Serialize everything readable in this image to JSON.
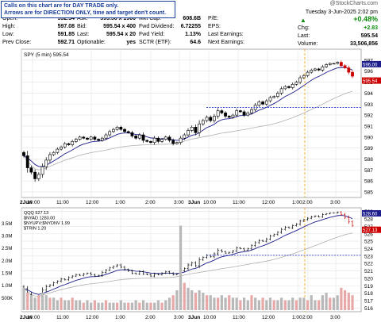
{
  "notice": {
    "line1": "Calls on this chart are for DAY TRADE only.",
    "line2": "Arrows are for DIRECTION ONLY, time and target don't count."
  },
  "brand": "@StockCharts.com",
  "header": {
    "date": "Tuesday  3-Jun-2025  2:02 pm",
    "change_pct": "+0.48%",
    "chg": "+2.83",
    "last": "595.54",
    "volume": "33,506,856"
  },
  "quote": {
    "rows": [
      [
        [
          "Open:",
          "592.34"
        ],
        [
          "Ask:",
          "595.56 x 1900"
        ],
        [
          "Mkt Cap:",
          "608.6B"
        ],
        [
          "P/E:",
          ""
        ]
      ],
      [
        [
          "High:",
          "597.08"
        ],
        [
          "Bid:",
          "595.54 x 400"
        ],
        [
          "Fwd Dividend:",
          "6.72255"
        ],
        [
          "EPS:",
          ""
        ]
      ],
      [
        [
          "Low:",
          "591.85"
        ],
        [
          "Last:",
          "595.54 x 20"
        ],
        [
          "Fwd Yield:",
          "1.13%"
        ],
        [
          "Last Earnings:",
          ""
        ]
      ],
      [
        [
          "Prev Close:",
          "592.71"
        ],
        [
          "Optionable:",
          "yes"
        ],
        [
          "SCTR (ETF):",
          "64.6"
        ],
        [
          "Next Earnings:",
          ""
        ]
      ]
    ],
    "right_labels": [
      "Chg:",
      "Last:",
      "Volume:"
    ]
  },
  "colors": {
    "up": "#000000",
    "down": "#cc0000",
    "ma_fast": "#1c1c8c",
    "ma_slow": "#b0b0b0",
    "level": "#2233cc",
    "now": "#f0a000",
    "grid": "#e4e4e4",
    "vol": "#b8b8b8"
  },
  "chart_data": [
    {
      "type": "candlestick",
      "title": "SPY (5 min) 595.54",
      "x_tick_labels": [
        "2Jun",
        "10:00",
        "11:00",
        "12:00",
        "1:00",
        "2:00",
        "3:00",
        "3Jun",
        "10:00",
        "11:00",
        "12:00",
        "1:00",
        "2:00",
        "3:00"
      ],
      "ylim": [
        584.5,
        598
      ],
      "y_ticks": [
        585,
        586,
        587,
        588,
        589,
        590,
        591,
        592,
        593,
        594,
        595,
        596,
        597
      ],
      "series": [
        {
          "type": "ohlc",
          "close": [
            588.3,
            587.2,
            586.8,
            586.2,
            586.6,
            587.3,
            587.9,
            588.4,
            588.6,
            588.9,
            589.1,
            589.4,
            589.3,
            589.6,
            589.8,
            590.0,
            589.9,
            589.8,
            590.0,
            589.8,
            589.7,
            589.9,
            590.2,
            590.5,
            590.7,
            590.9,
            590.7,
            590.5,
            590.4,
            590.1,
            589.9,
            590.2,
            589.7,
            589.6,
            589.5,
            589.9,
            589.6,
            589.8,
            590.0,
            589.7,
            589.4,
            589.5,
            589.9,
            590.2,
            590.6,
            590.9,
            590.4,
            591.2,
            591.5,
            591.8,
            591.5,
            591.9,
            592.4,
            592.2,
            591.9,
            591.8,
            592.0,
            592.4,
            592.3,
            592.0,
            592.2,
            592.5,
            592.9,
            593.2,
            593.0,
            593.3,
            593.6,
            593.7,
            594.0,
            594.4,
            594.6,
            594.5,
            594.8,
            595.0,
            595.4,
            595.6,
            595.9,
            596.1,
            596.2,
            596.1,
            596.4,
            596.6,
            596.7,
            596.7,
            596.8,
            596.5,
            596.3,
            595.9,
            595.54
          ]
        },
        {
          "name": "Avg fast",
          "type": "line"
        },
        {
          "name": "Avg slow",
          "type": "line"
        }
      ],
      "horizontal_line": 592.7,
      "right_labels": [
        "596.00",
        "595.54"
      ]
    },
    {
      "type": "ohlc",
      "legend": [
        "QQQ 527.13",
        "$NYAD 1283.00",
        "$NYUPV:$NYDNV 1.99",
        "$TRIN 1.20"
      ],
      "ylim": [
        515.5,
        529.5
      ],
      "y_ticks": [
        516,
        517,
        518,
        519,
        520,
        521,
        522,
        523,
        524,
        525,
        526,
        527,
        528,
        529
      ],
      "close": [
        518.6,
        517.8,
        517.1,
        516.9,
        517.5,
        518.4,
        518.9,
        519.1,
        519.4,
        519.6,
        519.9,
        519.8,
        520.1,
        520.3,
        520.5,
        520.4,
        520.6,
        520.7,
        520.5,
        520.3,
        520.4,
        520.8,
        521.1,
        521.4,
        521.6,
        521.8,
        521.5,
        521.2,
        521.0,
        520.7,
        520.6,
        520.9,
        520.6,
        520.5,
        520.3,
        520.6,
        520.5,
        520.7,
        520.9,
        520.7,
        520.5,
        520.6,
        521.0,
        521.3,
        521.8,
        522.1,
        521.7,
        522.5,
        522.8,
        523.1,
        522.9,
        523.3,
        523.8,
        523.6,
        523.4,
        523.5,
        523.7,
        524.1,
        524.0,
        523.8,
        524.0,
        524.4,
        524.8,
        525.1,
        525.0,
        525.3,
        525.7,
        525.9,
        526.2,
        526.6,
        526.9,
        526.8,
        527.1,
        527.3,
        527.7,
        527.9,
        528.1,
        528.3,
        528.4,
        528.3,
        528.6,
        528.7,
        528.8,
        528.8,
        528.9,
        528.6,
        528.2,
        527.6,
        527.13
      ],
      "horizontal_line": 523.1,
      "volume": {
        "ylim": [
          0,
          3.8
        ],
        "y_ticks": [
          "500K",
          "1.0M",
          "1.5M",
          "2.0M",
          "2.5M",
          "3.0M",
          "3.5M"
        ],
        "values": [
          0.9,
          0.7,
          0.6,
          0.5,
          0.6,
          0.7,
          0.6,
          0.5,
          0.5,
          0.4,
          0.5,
          0.4,
          0.4,
          0.5,
          0.4,
          0.4,
          0.3,
          0.4,
          0.3,
          0.4,
          0.3,
          0.3,
          0.4,
          0.3,
          0.3,
          0.3,
          0.4,
          0.3,
          0.3,
          0.3,
          0.4,
          0.3,
          0.4,
          0.3,
          0.3,
          0.3,
          0.4,
          0.3,
          0.4,
          0.5,
          0.6,
          0.8,
          3.4,
          1.1,
          0.9,
          0.8,
          0.7,
          0.8,
          0.7,
          0.6,
          0.6,
          0.5,
          0.5,
          0.6,
          0.5,
          0.6,
          0.5,
          0.5,
          0.4,
          0.5,
          0.4,
          0.6,
          0.5,
          0.4,
          0.5,
          0.4,
          0.5,
          0.4,
          0.4,
          0.5,
          0.4,
          0.4,
          0.5,
          0.4,
          0.5,
          0.5,
          0.4,
          0.6,
          0.4,
          0.4,
          0.6,
          0.7,
          0.5,
          0.5,
          0.6,
          0.9,
          0.8,
          0.7,
          0.6
        ]
      },
      "right_labels": [
        "528.60",
        "527.13"
      ]
    }
  ]
}
